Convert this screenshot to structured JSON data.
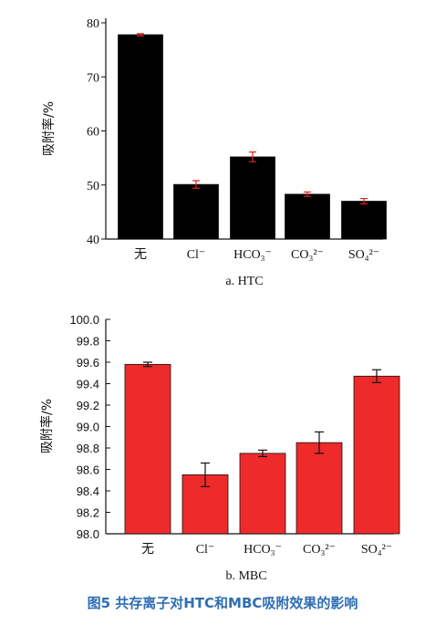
{
  "chart_data": [
    {
      "type": "bar",
      "subtitle": "a. HTC",
      "ylabel": "吸附率/%",
      "categories": [
        "无",
        "Cl⁻",
        "HCO₃⁻",
        "CO₃²⁻",
        "SO₄²⁻"
      ],
      "values": [
        77.8,
        50.1,
        55.2,
        48.3,
        47.0
      ],
      "errors": [
        0.2,
        0.7,
        0.9,
        0.4,
        0.5
      ],
      "ylim": [
        40,
        80
      ],
      "yticks": [
        "40",
        "50",
        "60",
        "70",
        "80"
      ],
      "bar_color": "#000000",
      "error_color": "#e02020"
    },
    {
      "type": "bar",
      "subtitle": "b. MBC",
      "ylabel": "吸附率/%",
      "categories": [
        "无",
        "Cl⁻",
        "HCO₃⁻",
        "CO₃²⁻",
        "SO₄²⁻"
      ],
      "values": [
        99.58,
        98.55,
        98.75,
        98.85,
        99.47
      ],
      "errors": [
        0.02,
        0.11,
        0.03,
        0.1,
        0.06
      ],
      "ylim": [
        98.0,
        100.0
      ],
      "yticks": [
        "98.0",
        "98.2",
        "98.4",
        "98.6",
        "98.8",
        "99.0",
        "99.2",
        "99.4",
        "99.6",
        "99.8",
        "100.0"
      ],
      "bar_color": "#ee2a2a",
      "error_color": "#111111"
    }
  ],
  "caption": "图5 共存离子对HTC和MBC吸附效果的影响"
}
